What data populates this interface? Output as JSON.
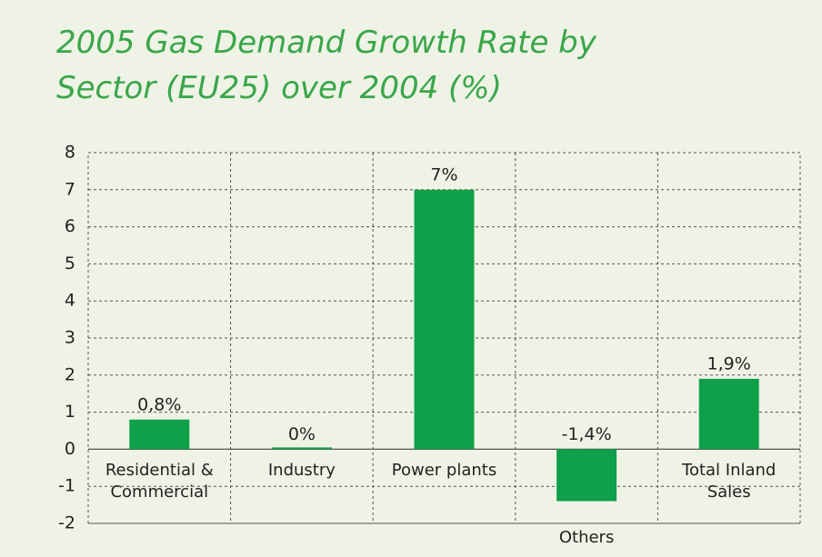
{
  "chart_data": {
    "type": "bar",
    "title": "2005 Gas Demand Growth Rate by Sector (EU25) over 2004 (%)",
    "categories": [
      "Residential & Commercial",
      "Industry",
      "Power plants",
      "Others",
      "Total Inland Sales"
    ],
    "values": [
      0.8,
      0,
      7,
      -1.4,
      1.9
    ],
    "value_labels": [
      "0,8%",
      "0%",
      "7%",
      "-1,4%",
      "1,9%"
    ],
    "color": "#0fa04a",
    "ylim": [
      -2,
      8
    ],
    "yticks": [
      -2,
      -1,
      0,
      1,
      2,
      3,
      4,
      5,
      6,
      7,
      8
    ],
    "grid": true
  }
}
